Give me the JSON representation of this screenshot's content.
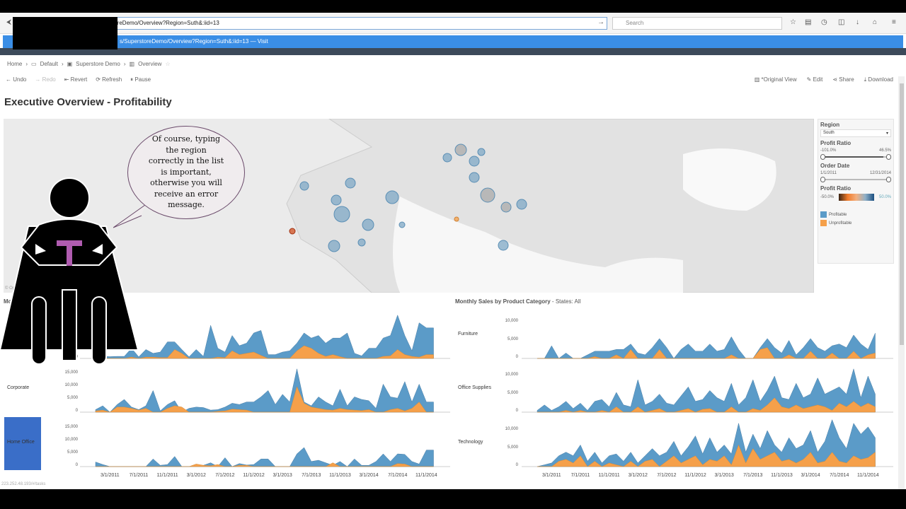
{
  "browser": {
    "url": "22                       erstoreDemo/Overview?Region=Suth&:iid=13",
    "search_placeholder": "Search",
    "suggestion": "s/SuperstoreDemo/Overview?Region=Suth&:iid=13",
    "suggestion_action": "— Visit"
  },
  "breadcrumb": [
    "Home",
    "Default",
    "Superstore Demo",
    "Overview"
  ],
  "toolbar": {
    "undo": "Undo",
    "redo": "Redo",
    "revert": "Revert",
    "refresh": "Refresh",
    "pause": "Pause",
    "original_view": "*Original View",
    "edit": "Edit",
    "share": "Share",
    "download": "Download"
  },
  "dashboard": {
    "title": "Executive Overview - Profitability",
    "map_attribution": "© OpenS",
    "status_url": "223.252.48.193/#/tasks"
  },
  "filters": {
    "region_label": "Region",
    "region_value": "South",
    "profit_ratio_label": "Profit Ratio",
    "profit_min": "-101.0%",
    "profit_max": "46.5%",
    "profit_fill": 0.92,
    "date_label": "Order Date",
    "date_min": "1/1/2011",
    "date_max": "12/31/2014",
    "legend_label": "Profit Ratio",
    "legend_min": "-50.0%",
    "legend_max": "50.0%",
    "profitable": "Profitable",
    "unprofitable": "Unprofitable",
    "colors": {
      "profitable": "#5b9bc8",
      "unprofitable": "#f5a04a"
    }
  },
  "bubble": {
    "text": "Of course, typing the region correctly in the list is important, otherwise you will receive an error message."
  },
  "chart_data": [
    {
      "type": "area",
      "title": "Month",
      "panels": [
        {
          "label": "",
          "ticks": [
            "0"
          ],
          "ylim": [
            0,
            19000
          ],
          "series": [
            {
              "name": "Profitable",
              "values": [
                0,
                800,
                700,
                800,
                800,
                4000,
                600,
                3500,
                2000,
                2500,
                6500,
                6500,
                3500,
                600,
                3500,
                800,
                13000,
                4000,
                2500,
                9000,
                5000,
                6000,
                10000,
                11000,
                1500,
                1500,
                2500,
                3000,
                6000,
                10000,
                8000,
                9000,
                6000,
                8000,
                8000,
                10000,
                2000,
                1000,
                4000,
                4000,
                8000,
                9000,
                17000,
                9000,
                3000,
                14000,
                12000,
                12000
              ]
            },
            {
              "name": "Unprofitable",
              "values": [
                0,
                0,
                0,
                0,
                0,
                500,
                0,
                500,
                500,
                300,
                300,
                3500,
                2000,
                0,
                0,
                0,
                0,
                500,
                300,
                3000,
                1500,
                2000,
                2500,
                1200,
                0,
                0,
                0,
                0,
                3000,
                5000,
                4000,
                2000,
                800,
                1500,
                700,
                0,
                0,
                0,
                0,
                0,
                800,
                1000,
                3500,
                1500,
                800,
                500,
                1500,
                1500
              ]
            }
          ]
        },
        {
          "label": "Corporate",
          "ticks": [
            "15,000",
            "10,000",
            "5,000",
            "0"
          ],
          "ylim": [
            0,
            19000
          ],
          "series": [
            {
              "name": "Profitable",
              "values": [
                1000,
                2500,
                0,
                3000,
                5000,
                2000,
                1000,
                2500,
                8500,
                500,
                3000,
                4500,
                0,
                1500,
                2000,
                1800,
                800,
                1000,
                2000,
                3500,
                3000,
                4000,
                4000,
                6000,
                8500,
                3000,
                7000,
                4000,
                17000,
                4000,
                2500,
                6000,
                4000,
                2500,
                9000,
                2500,
                6000,
                5000,
                4500,
                1500,
                11000,
                6000,
                5500,
                12000,
                4000,
                11000,
                4000,
                4000
              ]
            },
            {
              "name": "Unprofitable",
              "values": [
                500,
                800,
                0,
                2000,
                2000,
                1500,
                800,
                1500,
                0,
                0,
                1500,
                2500,
                2000,
                0,
                0,
                0,
                0,
                300,
                500,
                1200,
                1000,
                800,
                0,
                0,
                0,
                0,
                0,
                0,
                10000,
                3500,
                2000,
                1500,
                1000,
                800,
                1500,
                1000,
                800,
                600,
                1000,
                0,
                0,
                1000,
                1500,
                500,
                1500,
                4000,
                0,
                0
              ]
            }
          ]
        },
        {
          "label": "Home Office",
          "ticks": [
            "15,000",
            "10,000",
            "5,000",
            "0"
          ],
          "ylim": [
            0,
            19000
          ],
          "series": [
            {
              "name": "Profitable",
              "values": [
                1800,
                800,
                0,
                0,
                0,
                0,
                0,
                0,
                3000,
                500,
                800,
                4000,
                0,
                0,
                200,
                500,
                1500,
                0,
                3500,
                0,
                1200,
                600,
                800,
                3000,
                3000,
                0,
                0,
                0,
                5000,
                7500,
                2000,
                2500,
                1500,
                500,
                2000,
                0,
                3000,
                500,
                500,
                2000,
                5000,
                2000,
                5000,
                4800,
                2000,
                1000,
                6500,
                6500
              ]
            },
            {
              "name": "Unprofitable",
              "values": [
                0,
                0,
                0,
                0,
                0,
                0,
                0,
                0,
                0,
                0,
                0,
                0,
                0,
                0,
                1000,
                500,
                300,
                800,
                0,
                0,
                500,
                500,
                0,
                0,
                0,
                0,
                0,
                0,
                0,
                0,
                0,
                0,
                0,
                1500,
                0,
                0,
                0,
                0,
                0,
                0,
                0,
                0,
                1200,
                1000,
                0,
                0,
                0,
                0
              ]
            }
          ]
        }
      ],
      "x_ticks": [
        "3/1/2011",
        "7/1/2011",
        "11/1/2011",
        "3/1/2012",
        "7/1/2012",
        "11/1/2012",
        "3/1/2013",
        "7/1/2013",
        "11/1/2013",
        "3/1/2014",
        "7/1/2014",
        "11/1/2014"
      ]
    },
    {
      "type": "area",
      "title": "Monthly Sales by Product Category",
      "subtitle": " - States: All",
      "panels": [
        {
          "label": "Furniture",
          "ticks": [
            "10,000",
            "5,000",
            "0"
          ],
          "ylim": [
            0,
            13500
          ],
          "series": [
            {
              "name": "Profitable",
              "values": [
                0,
                0,
                3500,
                0,
                1500,
                0,
                0,
                1000,
                2000,
                2000,
                2000,
                2500,
                2500,
                4000,
                1500,
                1000,
                3000,
                5500,
                3000,
                0,
                2500,
                4000,
                2000,
                2000,
                4000,
                2000,
                2500,
                6000,
                2500,
                0,
                0,
                3000,
                5500,
                3000,
                1500,
                5000,
                1000,
                3000,
                5500,
                3000,
                2000,
                3500,
                4000,
                3000,
                6500,
                4000,
                2500,
                7000
              ]
            },
            {
              "name": "Unprofitable",
              "values": [
                0,
                0,
                0,
                0,
                0,
                0,
                0,
                0,
                500,
                0,
                0,
                1000,
                0,
                2500,
                0,
                0,
                0,
                2500,
                0,
                0,
                0,
                0,
                0,
                0,
                0,
                0,
                0,
                1000,
                0,
                0,
                0,
                2500,
                3000,
                0,
                0,
                1000,
                0,
                0,
                2000,
                0,
                0,
                1500,
                0,
                0,
                2000,
                0,
                1000,
                1500
              ]
            }
          ]
        },
        {
          "label": "Office Supplies",
          "ticks": [
            "10,000",
            "5,000",
            "0"
          ],
          "ylim": [
            0,
            13500
          ],
          "series": [
            {
              "name": "Profitable",
              "values": [
                500,
                2000,
                500,
                1500,
                3000,
                1000,
                2500,
                500,
                3000,
                3500,
                1500,
                5500,
                2000,
                1500,
                9000,
                2000,
                3000,
                5000,
                2500,
                2000,
                4500,
                7000,
                3000,
                3500,
                6000,
                4000,
                3000,
                8000,
                2000,
                4000,
                9000,
                3000,
                6000,
                10000,
                4000,
                3500,
                8000,
                4000,
                5000,
                9500,
                5000,
                6000,
                7000,
                5000,
                12000,
                4000,
                10000,
                5000
              ]
            },
            {
              "name": "Unprofitable",
              "values": [
                0,
                0,
                0,
                0,
                500,
                0,
                500,
                0,
                0,
                500,
                0,
                1500,
                0,
                0,
                1500,
                0,
                500,
                1000,
                0,
                0,
                500,
                1000,
                0,
                800,
                1000,
                0,
                0,
                1500,
                0,
                0,
                1000,
                500,
                2000,
                4000,
                1500,
                1000,
                2000,
                1000,
                1500,
                2000,
                1500,
                500,
                2500,
                1500,
                3000,
                1500,
                2500,
                1500
              ]
            }
          ]
        },
        {
          "label": "Technology",
          "ticks": [
            "10,000",
            "5,000",
            "0"
          ],
          "ylim": [
            0,
            13500
          ],
          "series": [
            {
              "name": "Profitable",
              "values": [
                0,
                500,
                1000,
                3000,
                4000,
                3000,
                6000,
                1500,
                4000,
                1000,
                3000,
                3500,
                1500,
                4000,
                1000,
                3000,
                5000,
                3000,
                4000,
                7000,
                3000,
                5500,
                8500,
                3500,
                8000,
                4000,
                6000,
                3500,
                12000,
                4000,
                9000,
                5000,
                10000,
                6000,
                4000,
                8000,
                5000,
                6000,
                10000,
                4000,
                7000,
                13000,
                8000,
                5000,
                12000,
                9000,
                11000,
                8000
              ]
            },
            {
              "name": "Unprofitable",
              "values": [
                0,
                0,
                0,
                1500,
                2000,
                1000,
                3000,
                0,
                1500,
                0,
                1000,
                500,
                0,
                1500,
                0,
                1500,
                2000,
                0,
                1500,
                3000,
                1000,
                2000,
                3000,
                500,
                2000,
                1500,
                3000,
                500,
                6000,
                1000,
                5000,
                2000,
                3000,
                4000,
                1500,
                2000,
                1000,
                2000,
                4000,
                1000,
                1500,
                4000,
                1500,
                1000,
                3000,
                2000,
                2500,
                4000
              ]
            }
          ]
        }
      ],
      "x_ticks": [
        "3/1/2011",
        "7/1/2011",
        "11/1/2011",
        "3/1/2012",
        "7/1/2012",
        "11/1/2012",
        "3/1/2013",
        "7/1/2013",
        "11/1/2013",
        "3/1/2014",
        "7/1/2014",
        "11/1/2014"
      ]
    }
  ]
}
